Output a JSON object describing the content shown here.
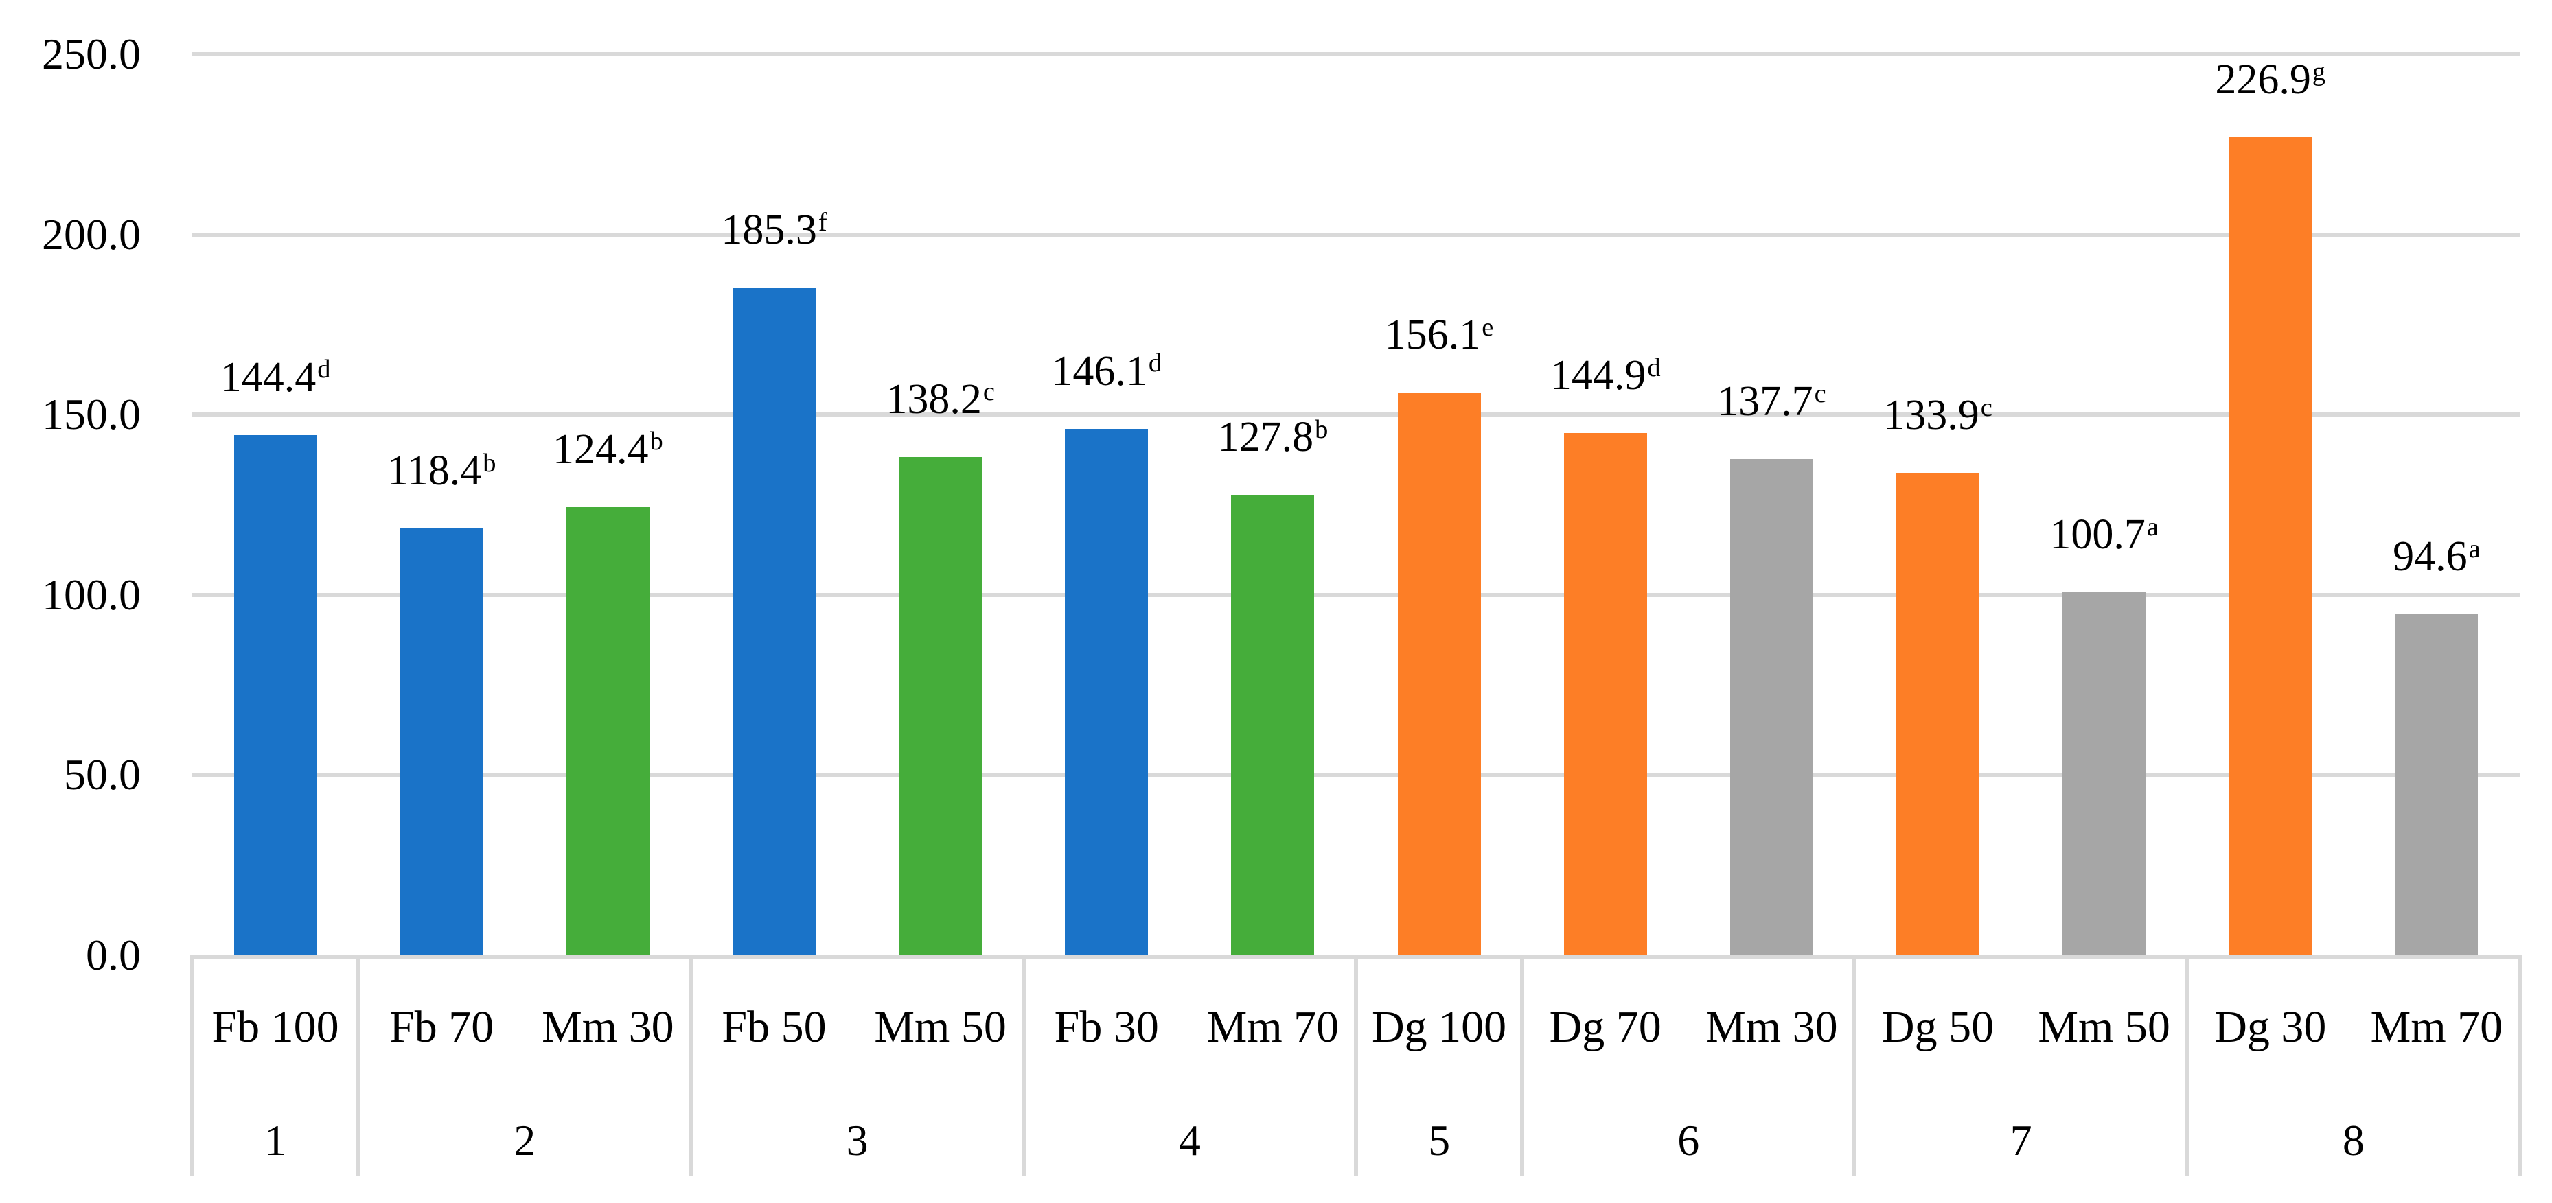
{
  "chart_data": {
    "type": "bar",
    "title": "",
    "xlabel": "",
    "ylabel": "",
    "ylim": [
      0,
      250
    ],
    "ytick_step": 50,
    "ytick_labels": [
      "0.0",
      "50.0",
      "100.0",
      "150.0",
      "200.0",
      "250.0"
    ],
    "grid": true,
    "legend": "none",
    "palette": {
      "blue": "#1A73C8",
      "green": "#45AD3A",
      "orange": "#FD7E26",
      "gray": "#A6A6A6",
      "gridline": "#D9D9D9",
      "axis_line": "#D9D9D9",
      "text": "#000000",
      "background": "#FFFFFF"
    },
    "groups": [
      {
        "number": "1",
        "bars": [
          {
            "category": "Fb 100",
            "value": 144.4,
            "letter": "d",
            "color_key": "blue"
          }
        ]
      },
      {
        "number": "2",
        "bars": [
          {
            "category": "Fb 70",
            "value": 118.4,
            "letter": "b",
            "color_key": "blue"
          },
          {
            "category": "Mm 30",
            "value": 124.4,
            "letter": "b",
            "color_key": "green"
          }
        ]
      },
      {
        "number": "3",
        "bars": [
          {
            "category": "Fb 50",
            "value": 185.3,
            "letter": "f",
            "color_key": "blue"
          },
          {
            "category": "Mm 50",
            "value": 138.2,
            "letter": "c",
            "color_key": "green"
          }
        ]
      },
      {
        "number": "4",
        "bars": [
          {
            "category": "Fb 30",
            "value": 146.1,
            "letter": "d",
            "color_key": "blue"
          },
          {
            "category": "Mm 70",
            "value": 127.8,
            "letter": "b",
            "color_key": "green"
          }
        ]
      },
      {
        "number": "5",
        "bars": [
          {
            "category": "Dg 100",
            "value": 156.1,
            "letter": "e",
            "color_key": "orange"
          }
        ]
      },
      {
        "number": "6",
        "bars": [
          {
            "category": "Dg 70",
            "value": 144.9,
            "letter": "d",
            "color_key": "orange"
          },
          {
            "category": "Mm 30",
            "value": 137.7,
            "letter": "c",
            "color_key": "gray"
          }
        ]
      },
      {
        "number": "7",
        "bars": [
          {
            "category": "Dg 50",
            "value": 133.9,
            "letter": "c",
            "color_key": "orange"
          },
          {
            "category": "Mm 50",
            "value": 100.7,
            "letter": "a",
            "color_key": "gray"
          }
        ]
      },
      {
        "number": "8",
        "bars": [
          {
            "category": "Dg 30",
            "value": 226.9,
            "letter": "g",
            "color_key": "orange"
          },
          {
            "category": "Mm 70",
            "value": 94.6,
            "letter": "a",
            "color_key": "gray"
          }
        ]
      }
    ]
  }
}
